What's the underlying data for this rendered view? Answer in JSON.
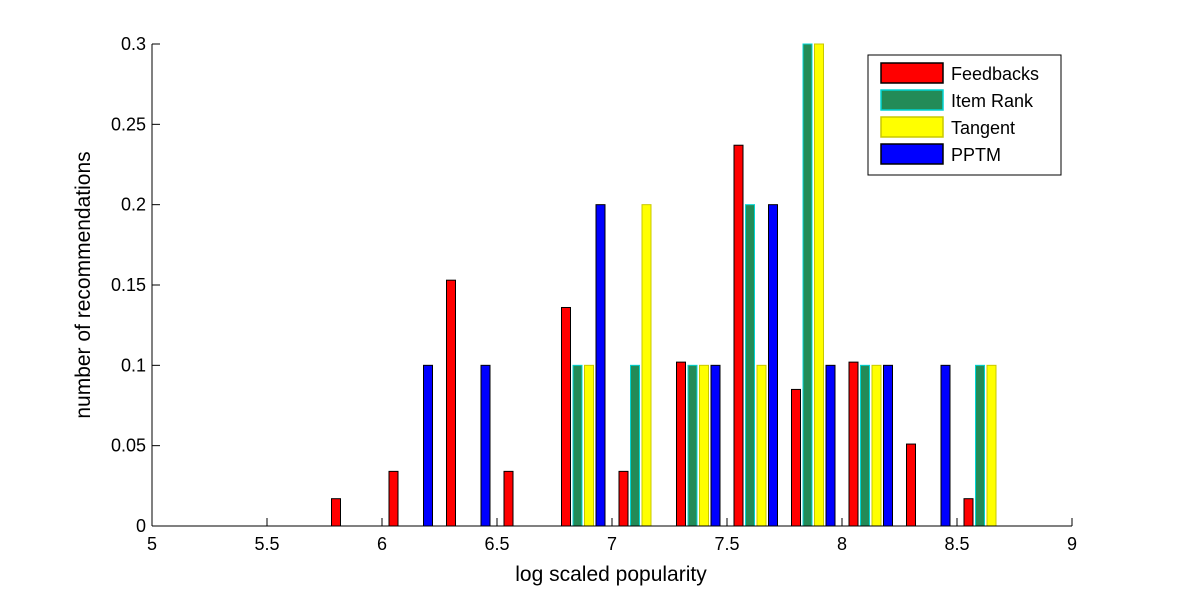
{
  "chart_data": {
    "type": "bar",
    "xlabel": "log scaled popularity",
    "ylabel": "number of recommendations",
    "xlim": [
      5,
      9
    ],
    "ylim": [
      0,
      0.3
    ],
    "x_ticks": [
      "5",
      "5.5",
      "6",
      "6.5",
      "7",
      "7.5",
      "8",
      "8.5",
      "9"
    ],
    "y_ticks": [
      "0",
      "0.05",
      "0.1",
      "0.15",
      "0.2",
      "0.25",
      "0.3"
    ],
    "legend_position": "top-right",
    "bins": [
      5.125,
      5.375,
      5.625,
      5.875,
      6.125,
      6.375,
      6.625,
      6.875,
      7.125,
      7.375,
      7.625,
      7.875,
      8.125,
      8.375,
      8.625,
      8.875
    ],
    "series": [
      {
        "name": "Feedbacks",
        "color": "#ff0000",
        "edge": "#000000",
        "values": [
          0,
          0,
          0,
          0.017,
          0.034,
          0.153,
          0.034,
          0.136,
          0.034,
          0.102,
          0.237,
          0.085,
          0.102,
          0.051,
          0.017,
          0
        ]
      },
      {
        "name": "Item Rank",
        "color": "#238b57",
        "edge": "#00d4d4",
        "values": [
          0,
          0,
          0,
          0,
          0,
          0,
          0,
          0.1,
          0.1,
          0.1,
          0.2,
          0.3,
          0.1,
          0,
          0.1,
          0
        ]
      },
      {
        "name": "Tangent",
        "color": "#ffff00",
        "edge": "#c8c800",
        "values": [
          0,
          0,
          0,
          0,
          0,
          0,
          0,
          0.1,
          0.2,
          0.1,
          0.1,
          0.3,
          0.1,
          0,
          0.1,
          0
        ]
      },
      {
        "name": "PPTM",
        "color": "#0000ff",
        "edge": "#000000",
        "values": [
          0,
          0,
          0,
          0,
          0.1,
          0.1,
          0,
          0.2,
          0,
          0.1,
          0.2,
          0.1,
          0.1,
          0.1,
          0,
          0
        ]
      }
    ]
  }
}
